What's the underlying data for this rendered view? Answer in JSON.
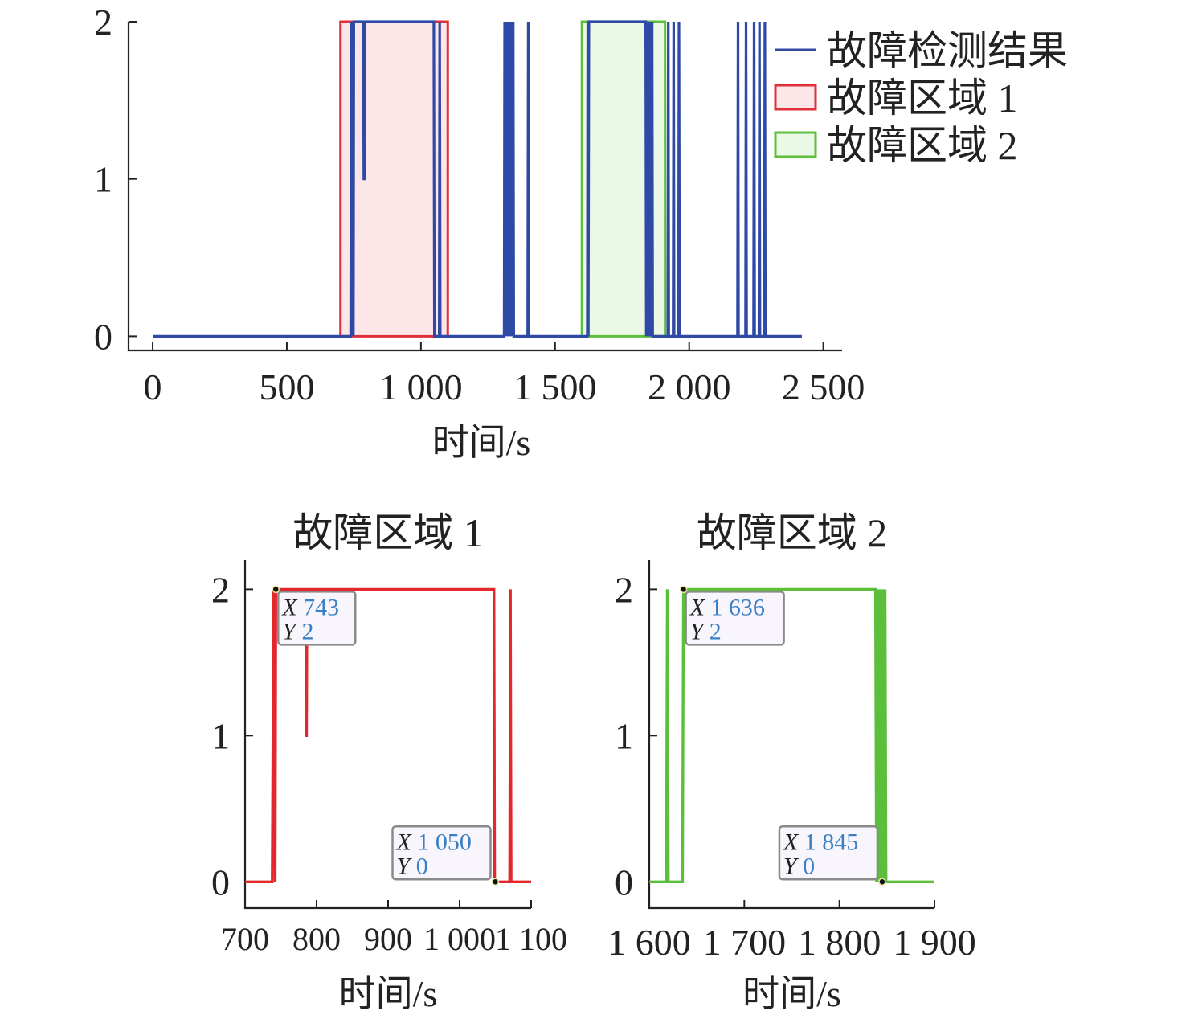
{
  "chart_data": [
    {
      "type": "line",
      "xlabel": "时间/s",
      "ylabel": "",
      "xlim": [
        -90,
        2570
      ],
      "ylim": [
        -0.09,
        2.0
      ],
      "xticks": [
        0,
        500,
        1000,
        1500,
        2000,
        2500
      ],
      "xtick_labels": [
        "0",
        "500",
        "1 000",
        "1 500",
        "2 000",
        "2 500"
      ],
      "yticks": [
        0,
        1,
        2
      ],
      "ytick_labels": [
        "0",
        "1",
        "2"
      ],
      "grid": false,
      "legend": "top-right",
      "legend_entries": [
        "故障检测结果",
        "故障区域 1",
        "故障区域 2"
      ],
      "series": [
        {
          "name": "故障检测结果",
          "color": "#2f4aa6",
          "x": [
            0,
            738,
            740,
            743,
            745,
            748,
            750,
            752,
            785,
            787,
            789,
            791,
            1048,
            1050,
            1052,
            1068,
            1070,
            1072,
            1074,
            1310,
            1312,
            1314,
            1316,
            1318,
            1320,
            1322,
            1324,
            1326,
            1328,
            1330,
            1332,
            1334,
            1336,
            1338,
            1340,
            1342,
            1344,
            1346,
            1348,
            1398,
            1400,
            1402,
            1404,
            1620,
            1622,
            1624,
            1626,
            1636,
            1638,
            1838,
            1840,
            1842,
            1844,
            1846,
            1848,
            1850,
            1852,
            1854,
            1856,
            1858,
            1860,
            1862,
            1864,
            1920,
            1922,
            1924,
            1926,
            1940,
            1942,
            1944,
            1946,
            1960,
            1962,
            1964,
            1966,
            2180,
            2182,
            2184,
            2186,
            2210,
            2212,
            2214,
            2216,
            2240,
            2242,
            2244,
            2246,
            2260,
            2262,
            2264,
            2266,
            2280,
            2282,
            2284,
            2286,
            2420
          ],
          "y": [
            0,
            0,
            2,
            0,
            2,
            0,
            2,
            2,
            2,
            1,
            1,
            2,
            2,
            0,
            0,
            0,
            2,
            0,
            0,
            0,
            2,
            0,
            2,
            0,
            2,
            0,
            2,
            0,
            2,
            0,
            2,
            0,
            2,
            0,
            2,
            0,
            2,
            0,
            0,
            0,
            2,
            0,
            0,
            0,
            2,
            0,
            2,
            2,
            2,
            2,
            0,
            2,
            0,
            2,
            0,
            2,
            0,
            2,
            0,
            2,
            0,
            2,
            0,
            0,
            2,
            0,
            0,
            0,
            2,
            0,
            0,
            0,
            2,
            0,
            0,
            0,
            2,
            0,
            0,
            0,
            2,
            0,
            0,
            0,
            2,
            0,
            0,
            0,
            2,
            0,
            0,
            0,
            2,
            0,
            0,
            0
          ]
        }
      ],
      "regions": [
        {
          "name": "故障区域 1",
          "x_start": 700,
          "x_end": 1100,
          "y_start": 0,
          "y_end": 2,
          "edge_color": "#e0303a",
          "fill_color": "#fde6e8"
        },
        {
          "name": "故障区域 2",
          "x_start": 1600,
          "x_end": 1910,
          "y_start": 0,
          "y_end": 2,
          "edge_color": "#5cbf3c",
          "fill_color": "#ecf8e6"
        }
      ]
    },
    {
      "type": "line",
      "title": "故障区域 1",
      "xlabel": "时间/s",
      "ylabel": "",
      "xlim": [
        700,
        1100
      ],
      "ylim": [
        -0.18,
        2.2
      ],
      "xticks": [
        700,
        800,
        900,
        1000,
        1100
      ],
      "xtick_labels": [
        "700",
        "800",
        "900",
        "1 000",
        "1 100"
      ],
      "yticks": [
        0,
        1,
        2
      ],
      "ytick_labels": [
        "0",
        "1",
        "2"
      ],
      "grid": false,
      "series": [
        {
          "color": "#e3282d",
          "x": [
            700,
            738,
            740,
            742,
            743,
            785,
            785.5,
            786,
            786.5,
            1048,
            1049,
            1050,
            1070,
            1071,
            1072,
            1100
          ],
          "y": [
            0,
            0,
            2,
            0,
            2,
            2,
            1,
            1,
            2,
            2,
            0,
            0,
            0,
            2,
            0,
            0
          ]
        }
      ],
      "datatips": [
        {
          "X": "743",
          "Y": "2",
          "x": 743,
          "y": 2
        },
        {
          "X": "1 050",
          "Y": "0",
          "x": 1050,
          "y": 0
        }
      ]
    },
    {
      "type": "line",
      "title": "故障区域 2",
      "xlabel": "时间/s",
      "ylabel": "",
      "xlim": [
        1600,
        1900
      ],
      "ylim": [
        -0.18,
        2.2
      ],
      "xticks": [
        1600,
        1700,
        1800,
        1900
      ],
      "xtick_labels": [
        "1 600",
        "1 700",
        "1 800",
        "1 900"
      ],
      "yticks": [
        0,
        1,
        2
      ],
      "ytick_labels": [
        "0",
        "1",
        "2"
      ],
      "grid": false,
      "series": [
        {
          "color": "#5cbf3c",
          "x": [
            1600,
            1618,
            1619,
            1620,
            1621,
            1635,
            1636,
            1838,
            1839,
            1840,
            1841,
            1842,
            1843,
            1844,
            1845,
            1846,
            1847,
            1848,
            1849,
            1900
          ],
          "y": [
            0,
            0,
            2,
            0,
            0,
            0,
            2,
            2,
            0,
            2,
            0,
            2,
            0,
            2,
            0,
            2,
            0,
            2,
            0,
            0
          ]
        }
      ],
      "datatips": [
        {
          "X": "1 636",
          "Y": "2",
          "x": 1636,
          "y": 2
        },
        {
          "X": "1 845",
          "Y": "0",
          "x": 1845,
          "y": 0
        }
      ]
    }
  ]
}
